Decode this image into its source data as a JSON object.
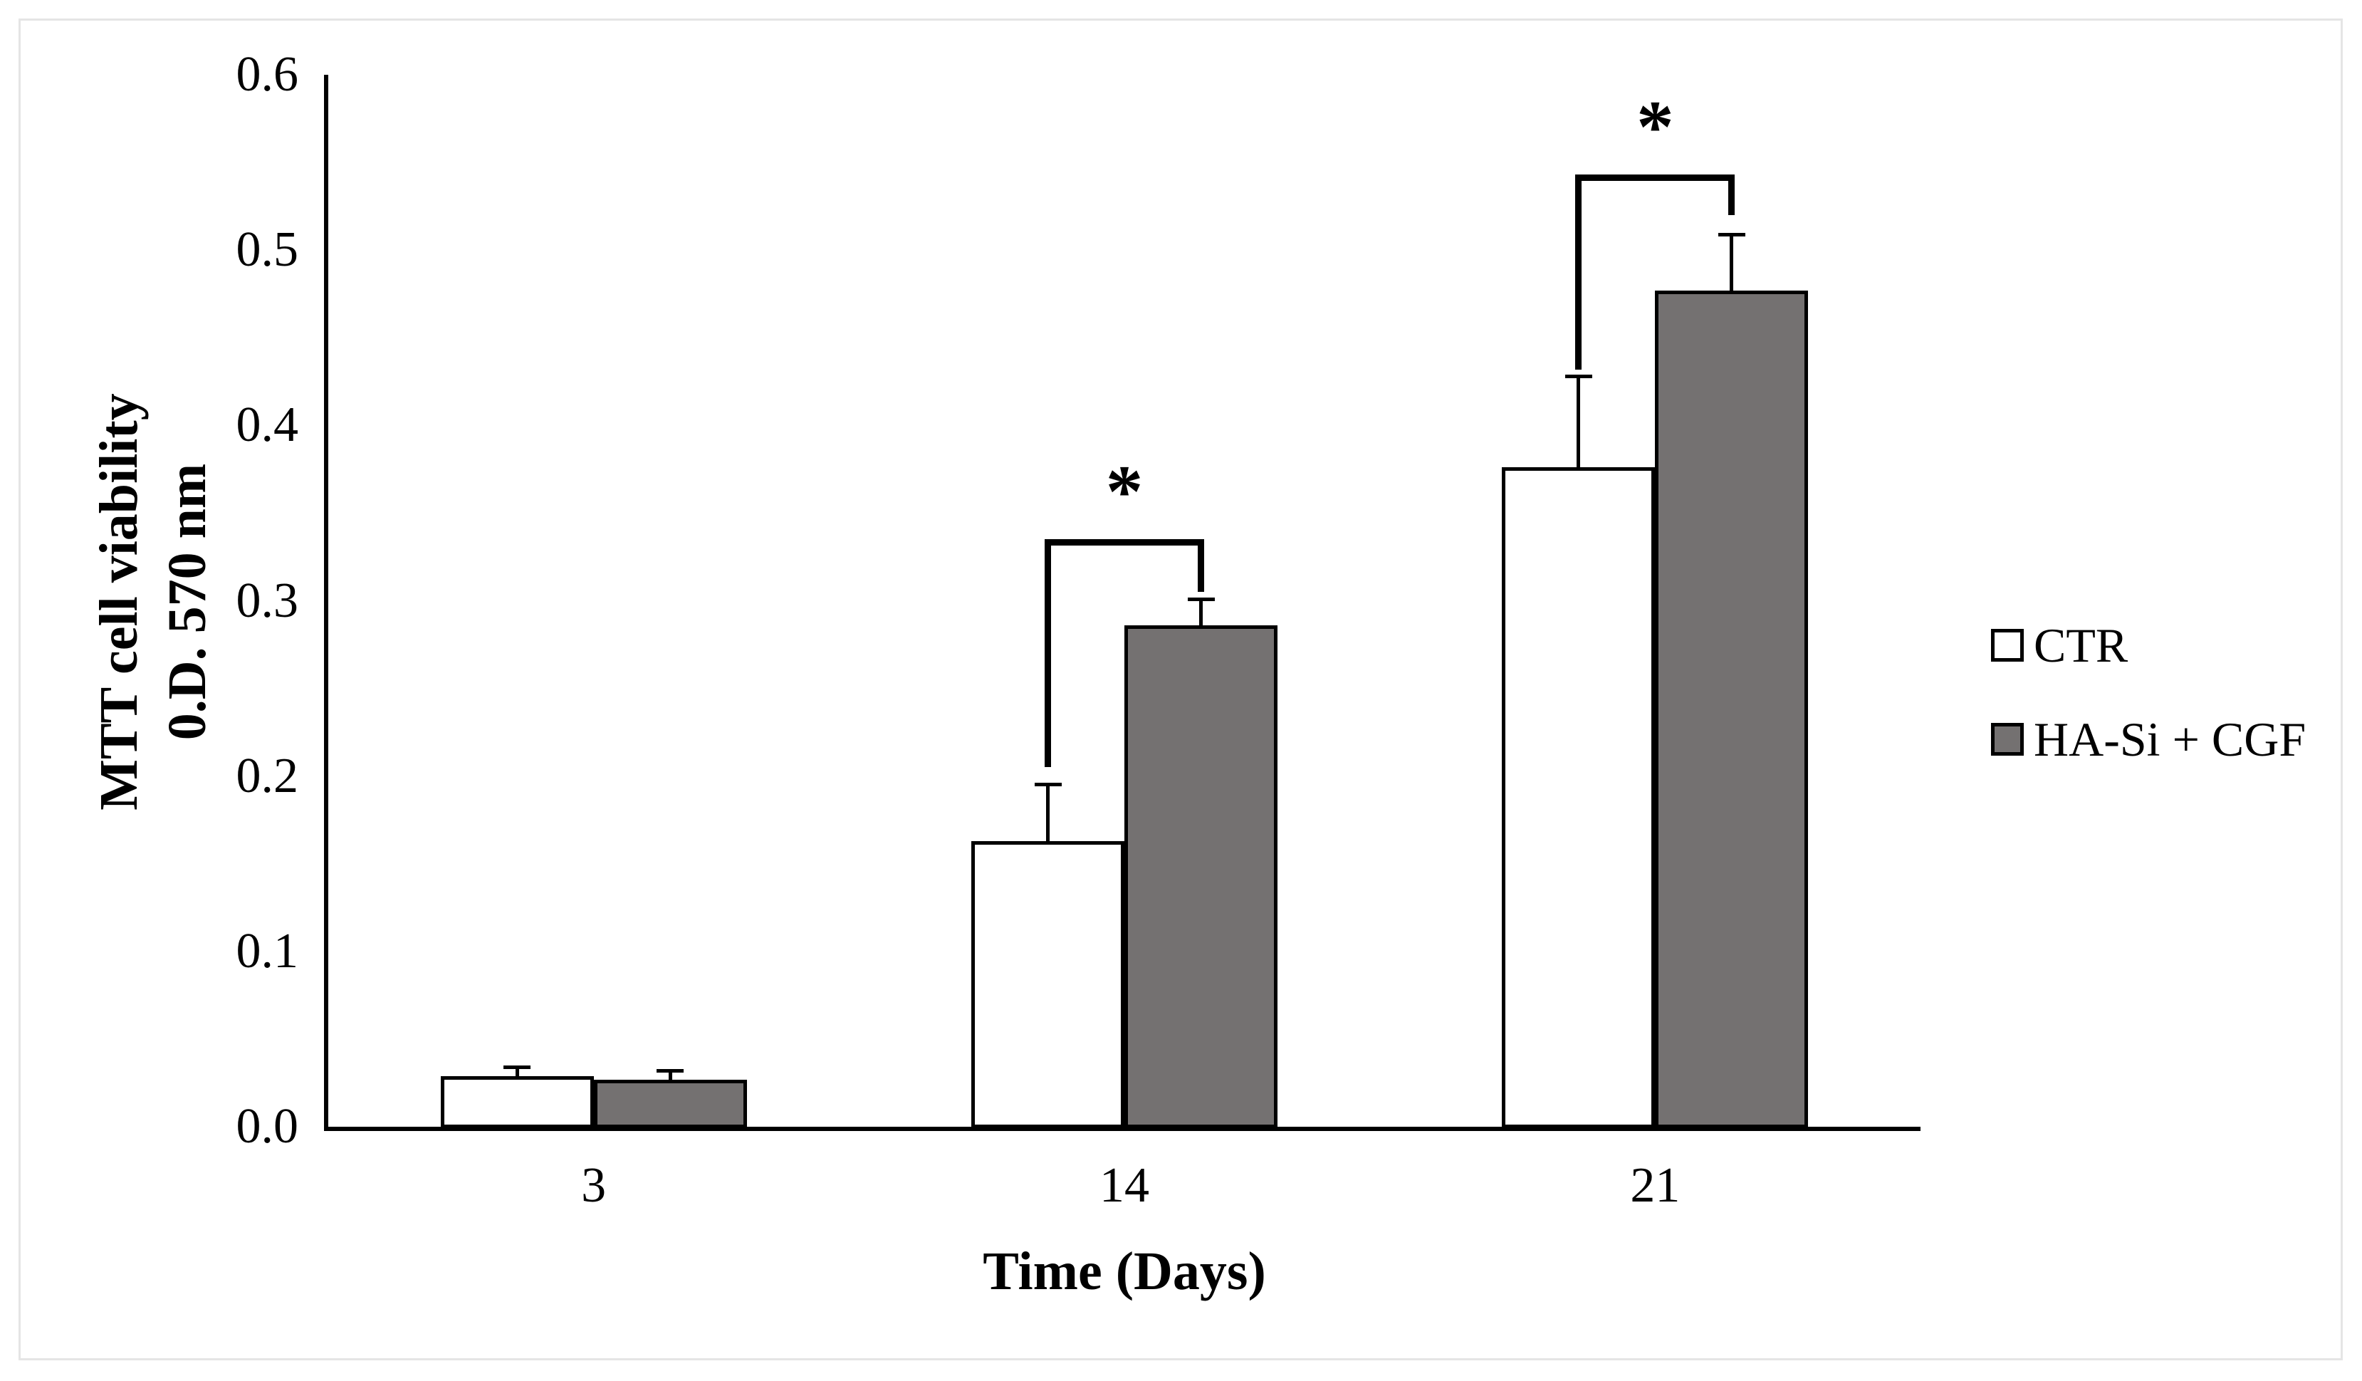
{
  "figure": {
    "background": "#ffffff",
    "frame_border_color": "#e5e5e5",
    "ink_color": "#000000"
  },
  "chart_data": {
    "type": "bar",
    "title": "",
    "xlabel": "Time (Days)",
    "ylabel_line1": "MTT cell viability",
    "ylabel_line2": "0.D. 570 nm",
    "categories": [
      "3",
      "14",
      "21"
    ],
    "series": [
      {
        "name": "CTR",
        "fill": "#ffffff",
        "outline": "#000000",
        "values": [
          0.029,
          0.163,
          0.376
        ],
        "errors_plus": [
          0.005,
          0.032,
          0.052
        ]
      },
      {
        "name": "HA-Si + CGF",
        "fill": "#747171",
        "outline": "#000000",
        "values": [
          0.027,
          0.286,
          0.477
        ],
        "errors_plus": [
          0.005,
          0.015,
          0.032
        ]
      }
    ],
    "ylim": [
      0,
      0.6
    ],
    "yticks": [
      "0.0",
      "0.1",
      "0.2",
      "0.3",
      "0.4",
      "0.5",
      "0.6"
    ],
    "ytick_values": [
      0.0,
      0.1,
      0.2,
      0.3,
      0.4,
      0.5,
      0.6
    ],
    "grid": false,
    "legend_position": "right",
    "significance": [
      {
        "category": "14",
        "label": "*",
        "bracket_top": 0.335,
        "left_drop_to": 0.205,
        "right_drop_to": 0.305
      },
      {
        "category": "21",
        "label": "*",
        "bracket_top": 0.543,
        "left_drop_to": 0.432,
        "right_drop_to": 0.52
      }
    ]
  }
}
